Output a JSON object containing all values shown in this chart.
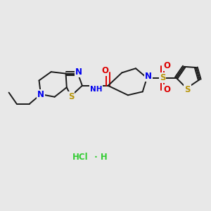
{
  "bg_color": "#e8e8e8",
  "bond_color": "#1a1a1a",
  "N_color": "#0000ee",
  "S_color": "#b8960c",
  "O_color": "#dd0000",
  "Cl_color": "#33cc33",
  "figsize": [
    3.0,
    3.0
  ],
  "dpi": 100,
  "xlim": [
    0,
    12
  ],
  "ylim": [
    0,
    12
  ]
}
